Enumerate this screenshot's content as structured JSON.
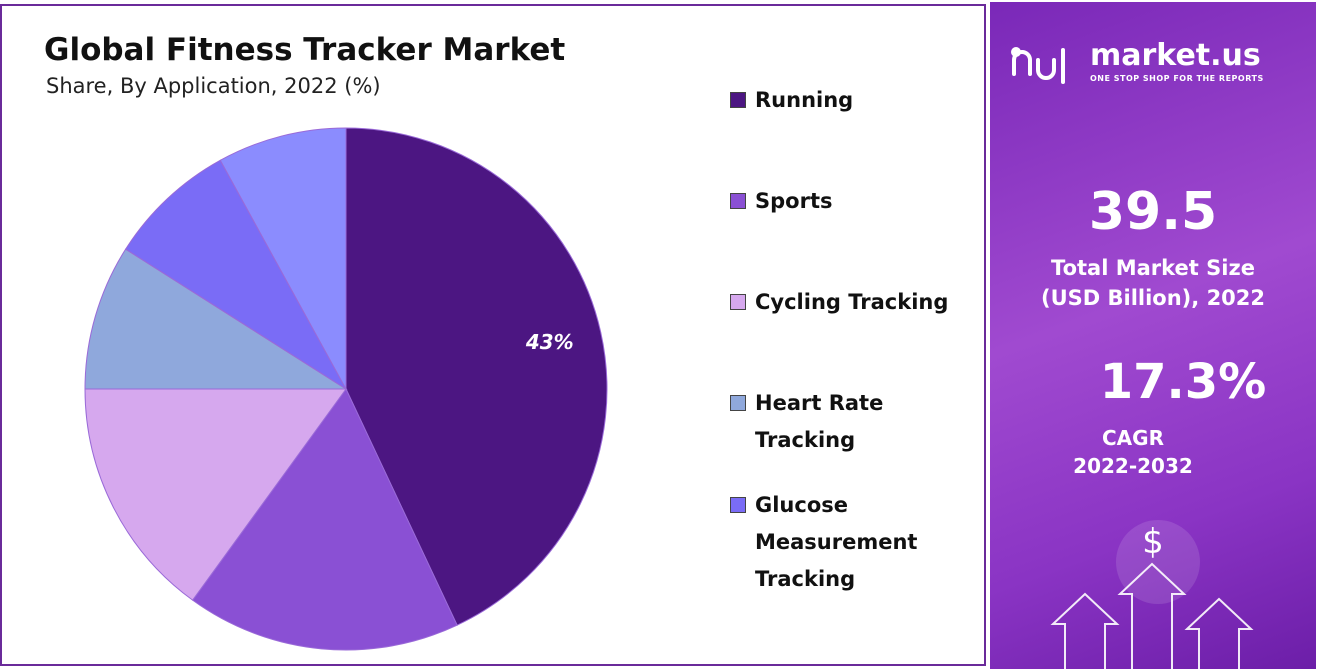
{
  "chart_data": {
    "type": "pie",
    "title": "Global Fitness Tracker Market",
    "subtitle": "Share, By Application, 2022 (%)",
    "categories": [
      "Running",
      "Sports",
      "Cycling Tracking",
      "Heart Rate Tracking",
      "Glucose Measurement Tracking",
      null
    ],
    "values": [
      43,
      17,
      15,
      9,
      8,
      8
    ],
    "value_labels": [
      "43%",
      null,
      null,
      null,
      null,
      null
    ],
    "colors": [
      "#4c1682",
      "#8a50d4",
      "#d6a8ee",
      "#8fa8dc",
      "#7a6cf6",
      "#8b8cfe"
    ]
  },
  "panel": {
    "brand": "market.us",
    "tagline": "ONE STOP SHOP FOR THE REPORTS",
    "market_size": "39.5",
    "market_size_label_1": "Total Market Size",
    "market_size_label_2": "(USD Billion), 2022",
    "cagr": "17.3%",
    "cagr_label_1": "CAGR",
    "cagr_label_2": "2022-2032",
    "icon": "$"
  }
}
